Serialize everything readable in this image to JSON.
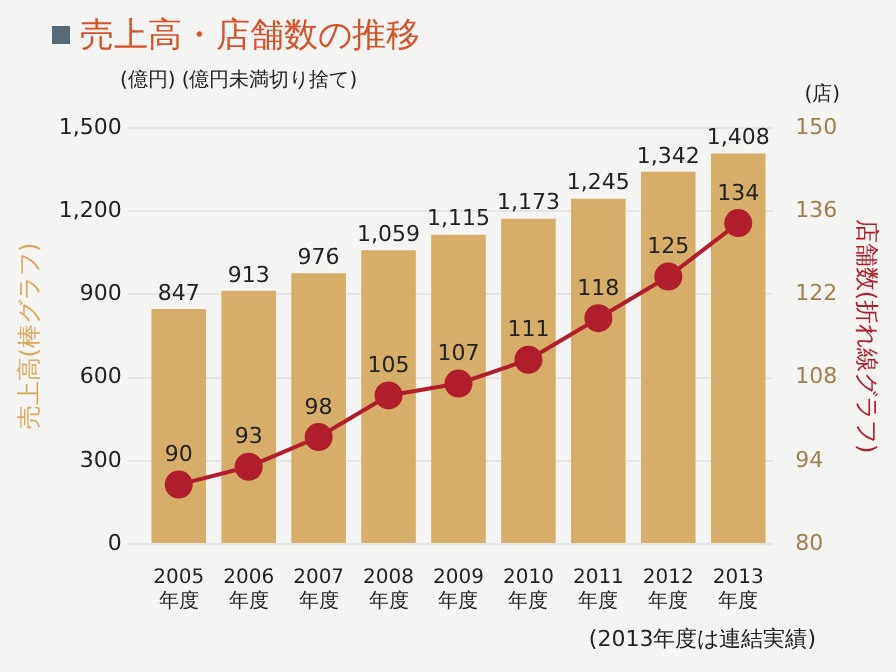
{
  "chart_data": {
    "type": "bar",
    "title": "売上高・店舗数の推移",
    "ylabel": "売上高(棒グラフ)",
    "y2label": "店舗数(折れ線グラフ)",
    "annotations": [
      "(億円)",
      "(億円未満切り捨て)",
      "(店)",
      "(2013年度は連結実績)"
    ],
    "categories": [
      "2005年度",
      "2006年度",
      "2007年度",
      "2008年度",
      "2009年度",
      "2010年度",
      "2011年度",
      "2012年度",
      "2013年度"
    ],
    "series": [
      {
        "color": "#d6ad69",
        "values": [
          847,
          913,
          976,
          1059,
          1115,
          1173,
          1245,
          1342,
          1408
        ],
        "value_labels": [
          "847",
          "913",
          "976",
          "1,059",
          "1,115",
          "1,173",
          "1,245",
          "1,342",
          "1,408"
        ]
      },
      {
        "type": "line",
        "axis": "y2",
        "color": "#b01e2c",
        "marker": "circle",
        "values": [
          90,
          93,
          98,
          105,
          107,
          111,
          118,
          125,
          134
        ]
      }
    ],
    "ylim": [
      0,
      1500
    ],
    "yticks": [
      0,
      300,
      600,
      900,
      {
        "value": 1200,
        "label": "1,200"
      },
      {
        "value": 1500,
        "label": "1,500"
      }
    ],
    "y2lim": [
      80,
      150
    ],
    "y2ticks": [
      80,
      94,
      108,
      122,
      136,
      150
    ],
    "grid": "y",
    "legend": false,
    "data_labels": true
  }
}
